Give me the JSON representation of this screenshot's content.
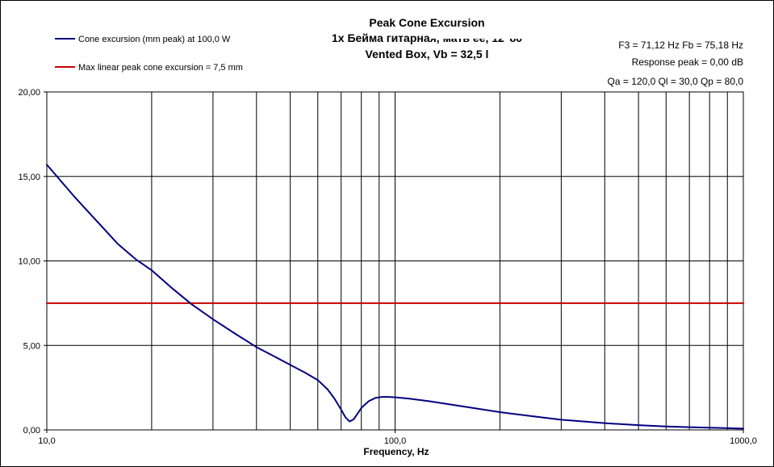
{
  "chart_data": {
    "type": "line",
    "title": "Peak Cone Excursion",
    "subtitle_lines": [
      "1x Бeйма гитарная, мать её, 12\"80",
      "Vented Box, Vb = 32,5 l"
    ],
    "info_lines": [
      "F3 = 71,12 Hz  Fb = 75,18 Hz",
      "Response peak = 0,00 dB",
      "Qa = 120,0  Ql = 30,0  Qp = 80,0"
    ],
    "xlabel": "Frequency, Hz",
    "ylabel": "",
    "xscale": "log",
    "xlim": [
      10,
      1000
    ],
    "ylim": [
      0,
      20
    ],
    "x_ticks": [
      10,
      100,
      1000
    ],
    "x_tick_labels": [
      "10,0",
      "100,0",
      "1000,0"
    ],
    "x_minor_gridlines": [
      20,
      30,
      40,
      50,
      60,
      70,
      80,
      90,
      200,
      300,
      400,
      500,
      600,
      700,
      800,
      900
    ],
    "y_ticks": [
      0,
      5,
      10,
      15,
      20
    ],
    "y_tick_labels": [
      "0,00",
      "5,00",
      "10,00",
      "15,00",
      "20,00"
    ],
    "grid": true,
    "legend_position": "top-left",
    "series": [
      {
        "name": "Cone excursion (mm peak) at 100,0 W",
        "color": "#000080",
        "x": [
          10,
          12,
          14,
          16,
          18,
          20,
          23,
          26,
          30,
          35,
          40,
          45,
          50,
          55,
          60,
          64,
          67,
          70,
          72,
          74,
          76,
          78,
          80,
          84,
          88,
          92,
          96,
          100,
          110,
          125,
          150,
          200,
          250,
          300,
          400,
          500,
          600,
          700,
          800,
          1000
        ],
        "y": [
          15.7,
          13.8,
          12.3,
          11.0,
          10.1,
          9.45,
          8.35,
          7.45,
          6.55,
          5.65,
          4.9,
          4.35,
          3.85,
          3.4,
          2.95,
          2.4,
          1.85,
          1.2,
          0.75,
          0.5,
          0.62,
          0.95,
          1.3,
          1.7,
          1.9,
          1.95,
          1.95,
          1.93,
          1.85,
          1.7,
          1.45,
          1.05,
          0.8,
          0.6,
          0.4,
          0.28,
          0.2,
          0.16,
          0.13,
          0.08
        ]
      },
      {
        "name": "Max linear peak cone excursion = 7,5 mm",
        "color": "#cc0000",
        "x": [
          10,
          1000
        ],
        "y": [
          7.5,
          7.5
        ]
      }
    ]
  }
}
